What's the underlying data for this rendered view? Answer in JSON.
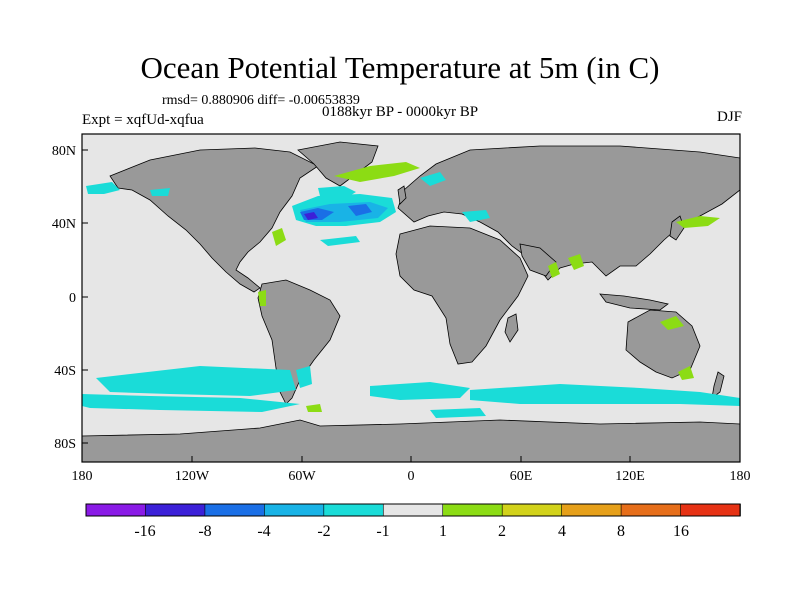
{
  "header": {
    "title": "Ocean Potential Temperature at 5m (in C)",
    "stats": "rmsd= 0.880906 diff= -0.00653839",
    "experiment": "Expt = xqfUd-xqfua",
    "period": "0188kyr BP - 0000kyr BP",
    "season": "DJF"
  },
  "map": {
    "lat_ticks": [
      "80N",
      "40N",
      "0",
      "40S",
      "80S"
    ],
    "lon_ticks": [
      "180",
      "120W",
      "60W",
      "0",
      "60E",
      "120E",
      "180"
    ],
    "colors": {
      "ocean_neutral": "#e6e6e6",
      "land": "#999999",
      "coast": "#000000"
    }
  },
  "colorbar": {
    "labels": [
      "-16",
      "-8",
      "-4",
      "-2",
      "-1",
      "1",
      "2",
      "4",
      "8",
      "16"
    ],
    "colors": [
      "#8a1ae6",
      "#3c20d8",
      "#1a6fe6",
      "#19b3e6",
      "#1adcd8",
      "#e6e6e6",
      "#8cdc14",
      "#d2d21a",
      "#e6a01a",
      "#e66e1a",
      "#e63214"
    ]
  }
}
